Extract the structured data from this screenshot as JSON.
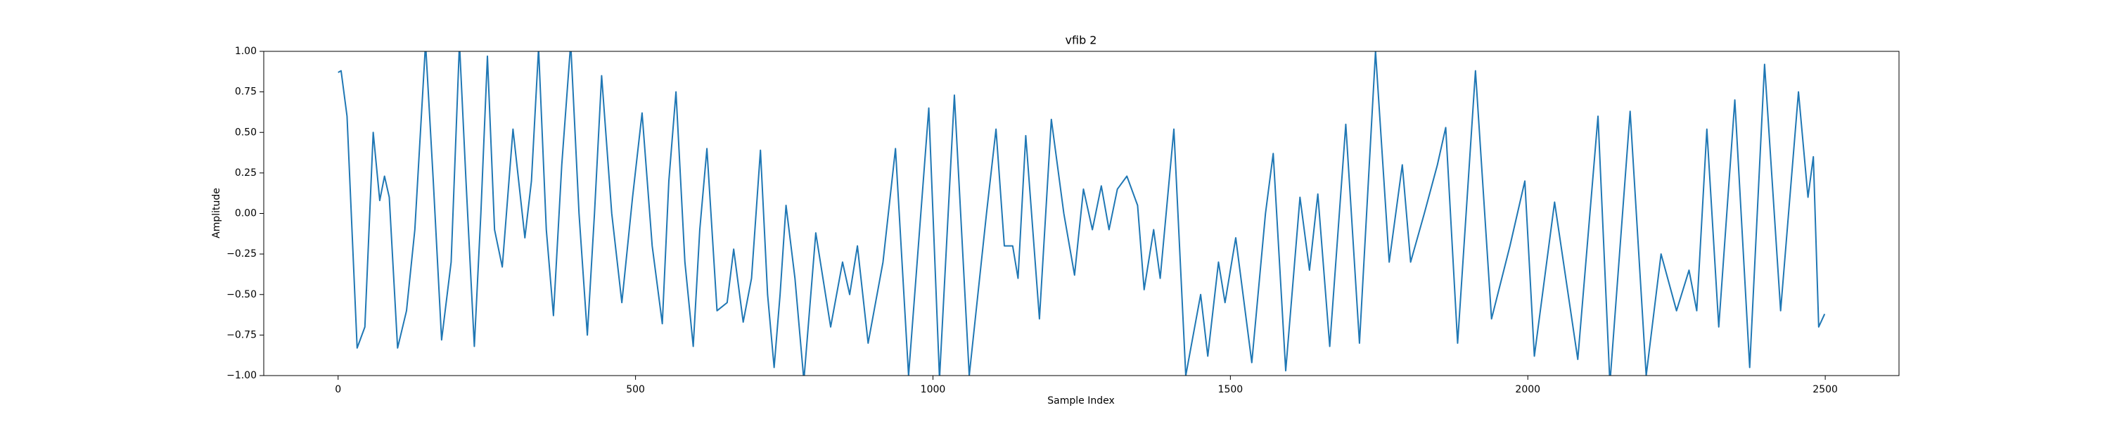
{
  "chart_data": {
    "type": "line",
    "title": "vfib 2",
    "xlabel": "Sample Index",
    "ylabel": "Amplitude",
    "color": "#1f77b4",
    "x": [
      0,
      5,
      15,
      32,
      45,
      59,
      70,
      78,
      86,
      100,
      115,
      129,
      147,
      160,
      174,
      190,
      204,
      215,
      229,
      240,
      251,
      263,
      276,
      294,
      314,
      325,
      337,
      350,
      362,
      376,
      391,
      405,
      419,
      431,
      443,
      460,
      477,
      495,
      511,
      528,
      545,
      556,
      568,
      583,
      597,
      608,
      620,
      637,
      654,
      665,
      681,
      695,
      710,
      722,
      733,
      743,
      753,
      768,
      783,
      803,
      828,
      848,
      860,
      873,
      891,
      916,
      937,
      959,
      993,
      1011,
      1036,
      1061,
      1090,
      1106,
      1120,
      1134,
      1143,
      1156,
      1179,
      1199,
      1220,
      1238,
      1253,
      1268,
      1283,
      1296,
      1310,
      1326,
      1344,
      1355,
      1371,
      1382,
      1405,
      1425,
      1450,
      1462,
      1480,
      1491,
      1509,
      1536,
      1559,
      1572,
      1593,
      1617,
      1633,
      1647,
      1667,
      1694,
      1717,
      1744,
      1767,
      1789,
      1803,
      1826,
      1848,
      1862,
      1882,
      1912,
      1939,
      1970,
      1995,
      2011,
      2045,
      2084,
      2118,
      2138,
      2172,
      2199,
      2224,
      2250,
      2271,
      2284,
      2301,
      2321,
      2348,
      2373,
      2398,
      2425,
      2455,
      2471,
      2480,
      2489,
      2499
    ],
    "values": [
      0.87,
      0.88,
      0.6,
      -0.83,
      -0.7,
      0.5,
      0.08,
      0.23,
      0.1,
      -0.83,
      -0.6,
      -0.1,
      1.05,
      0.2,
      -0.78,
      -0.3,
      1.05,
      0.2,
      -0.82,
      0.0,
      0.97,
      -0.1,
      -0.33,
      0.52,
      -0.15,
      0.2,
      1.02,
      -0.1,
      -0.63,
      0.3,
      1.05,
      0.0,
      -0.75,
      0.0,
      0.85,
      0.0,
      -0.55,
      0.1,
      0.62,
      -0.2,
      -0.68,
      0.2,
      0.75,
      -0.3,
      -0.82,
      -0.1,
      0.4,
      -0.6,
      -0.55,
      -0.22,
      -0.67,
      -0.4,
      0.39,
      -0.5,
      -0.95,
      -0.5,
      0.05,
      -0.4,
      -1.03,
      -0.12,
      -0.7,
      -0.3,
      -0.5,
      -0.2,
      -0.8,
      -0.3,
      0.4,
      -1.0,
      0.65,
      -1.02,
      0.73,
      -1.0,
      0.0,
      0.52,
      -0.2,
      -0.2,
      -0.4,
      0.48,
      -0.65,
      0.58,
      0.0,
      -0.38,
      0.15,
      -0.1,
      0.17,
      -0.1,
      0.15,
      0.23,
      0.05,
      -0.47,
      -0.1,
      -0.4,
      0.52,
      -1.0,
      -0.5,
      -0.88,
      -0.3,
      -0.55,
      -0.15,
      -0.92,
      0.0,
      0.37,
      -0.97,
      0.1,
      -0.35,
      0.12,
      -0.82,
      0.55,
      -0.8,
      1.0,
      -0.3,
      0.3,
      -0.3,
      0.0,
      0.3,
      0.53,
      -0.8,
      0.88,
      -0.65,
      -0.2,
      0.2,
      -0.88,
      0.07,
      -0.9,
      0.6,
      -1.05,
      0.63,
      -1.0,
      -0.25,
      -0.6,
      -0.35,
      -0.6,
      0.52,
      -0.7,
      0.7,
      -0.95,
      0.92,
      -0.6,
      0.75,
      0.1,
      0.35,
      -0.7,
      -0.62
    ],
    "xlim": [
      -125,
      2624
    ],
    "ylim": [
      -1,
      1
    ],
    "xticks": [
      0,
      500,
      1000,
      1500,
      2000,
      2500
    ],
    "yticks": [
      {
        "value": -1,
        "label": "−1.00"
      },
      {
        "value": -0.75,
        "label": "−0.75"
      },
      {
        "value": -0.5,
        "label": "−0.50"
      },
      {
        "value": -0.25,
        "label": "−0.25"
      },
      {
        "value": 0,
        "label": "0.00"
      },
      {
        "value": 0.25,
        "label": "0.25"
      },
      {
        "value": 0.5,
        "label": "0.50"
      },
      {
        "value": 0.75,
        "label": "0.75"
      },
      {
        "value": 1,
        "label": "1.00"
      }
    ]
  }
}
